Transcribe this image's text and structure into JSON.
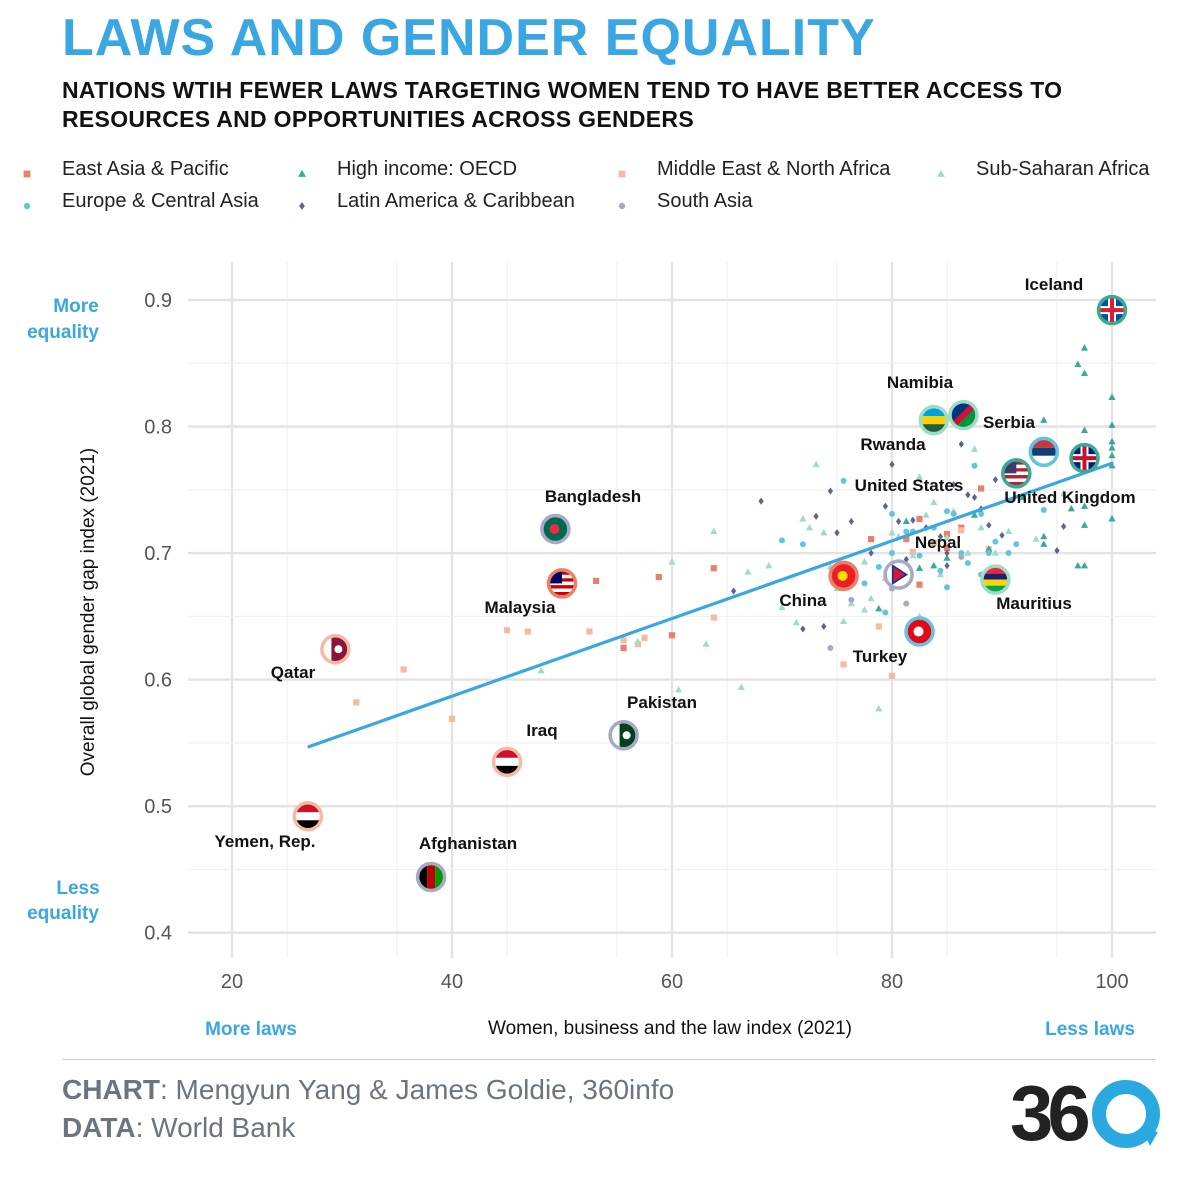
{
  "header": {
    "title": "LAWS AND GENDER EQUALITY",
    "subtitle": "NATIONS WTIH FEWER LAWS TARGETING WOMEN TEND TO HAVE BETTER ACCESS TO RESOURCES AND OPPORTUNITIES ACROSS GENDERS"
  },
  "legend": [
    {
      "label": "East Asia & Pacific",
      "shape": "square",
      "color": "#e8806c"
    },
    {
      "label": "High income: OECD",
      "shape": "triangle",
      "color": "#3aa996"
    },
    {
      "label": "Middle East & North Africa",
      "shape": "square",
      "color": "#f6b9a6"
    },
    {
      "label": "Sub-Saharan Africa",
      "shape": "triangle",
      "color": "#9fdcc6"
    },
    {
      "label": "Europe & Central Asia",
      "shape": "circle",
      "color": "#66c4da"
    },
    {
      "label": "Latin America & Caribbean",
      "shape": "diamond",
      "color": "#5b6690"
    },
    {
      "label": "South Asia",
      "shape": "circle",
      "color": "#a5aac5"
    }
  ],
  "annotations": {
    "y_high": [
      "More",
      "equality"
    ],
    "y_low": [
      "Less",
      "equality"
    ],
    "x_low": "More laws",
    "x_high": "Less laws"
  },
  "chart_data": {
    "type": "scatter",
    "xlabel": "Women, business and the law index (2021)",
    "ylabel": "Overall global gender gap index (2021)",
    "xlim": [
      16,
      104
    ],
    "ylim": [
      0.38,
      0.93
    ],
    "xticks": [
      "20",
      "40",
      "60",
      "80",
      "100"
    ],
    "yticks": [
      "0.4",
      "0.5",
      "0.6",
      "0.7",
      "0.8",
      "0.9"
    ],
    "trendline": {
      "x": [
        27,
        100
      ],
      "y": [
        0.547,
        0.771
      ],
      "color": "#3aa6e2"
    },
    "labeled_points": [
      {
        "label": "Iceland",
        "x": 100,
        "y": 0.892,
        "region": "High income: OECD"
      },
      {
        "label": "Namibia",
        "x": 86.5,
        "y": 0.809,
        "region": "Sub-Saharan Africa"
      },
      {
        "label": "Rwanda",
        "x": 83.8,
        "y": 0.805,
        "region": "Sub-Saharan Africa"
      },
      {
        "label": "Serbia",
        "x": 93.8,
        "y": 0.78,
        "region": "Europe & Central Asia"
      },
      {
        "label": "United Kingdom",
        "x": 97.5,
        "y": 0.775,
        "region": "High income: OECD"
      },
      {
        "label": "United States",
        "x": 91.3,
        "y": 0.763,
        "region": "High income: OECD"
      },
      {
        "label": "Bangladesh",
        "x": 49.4,
        "y": 0.719,
        "region": "South Asia"
      },
      {
        "label": "Nepal",
        "x": 80.6,
        "y": 0.683,
        "region": "South Asia"
      },
      {
        "label": "China",
        "x": 75.6,
        "y": 0.682,
        "region": "East Asia & Pacific"
      },
      {
        "label": "Mauritius",
        "x": 89.4,
        "y": 0.679,
        "region": "Sub-Saharan Africa"
      },
      {
        "label": "Malaysia",
        "x": 50.0,
        "y": 0.676,
        "region": "East Asia & Pacific"
      },
      {
        "label": "Turkey",
        "x": 82.5,
        "y": 0.638,
        "region": "Europe & Central Asia"
      },
      {
        "label": "Qatar",
        "x": 29.4,
        "y": 0.624,
        "region": "Middle East & North Africa"
      },
      {
        "label": "Pakistan",
        "x": 55.6,
        "y": 0.556,
        "region": "South Asia"
      },
      {
        "label": "Iraq",
        "x": 45.0,
        "y": 0.535,
        "region": "Middle East & North Africa"
      },
      {
        "label": "Yemen, Rep.",
        "x": 26.9,
        "y": 0.492,
        "region": "Middle East & North Africa"
      },
      {
        "label": "Afghanistan",
        "x": 38.1,
        "y": 0.444,
        "region": "South Asia"
      }
    ],
    "series": [
      {
        "name": "East Asia & Pacific",
        "points": [
          [
            53.1,
            0.678
          ],
          [
            58.8,
            0.681
          ],
          [
            63.8,
            0.688
          ],
          [
            60.0,
            0.635
          ],
          [
            55.6,
            0.625
          ],
          [
            78.1,
            0.711
          ],
          [
            81.3,
            0.711
          ],
          [
            82.5,
            0.727
          ],
          [
            82.5,
            0.675
          ],
          [
            85.0,
            0.715
          ],
          [
            86.3,
            0.72
          ],
          [
            88.1,
            0.751
          ],
          [
            85.0,
            0.704
          ]
        ]
      },
      {
        "name": "Middle East & North Africa",
        "points": [
          [
            31.3,
            0.582
          ],
          [
            35.6,
            0.608
          ],
          [
            40.0,
            0.569
          ],
          [
            45.0,
            0.639
          ],
          [
            46.9,
            0.638
          ],
          [
            52.5,
            0.638
          ],
          [
            55.6,
            0.631
          ],
          [
            56.9,
            0.628
          ],
          [
            57.5,
            0.633
          ],
          [
            63.8,
            0.649
          ],
          [
            75.6,
            0.612
          ],
          [
            80.0,
            0.603
          ],
          [
            81.9,
            0.701
          ],
          [
            86.3,
            0.718
          ],
          [
            88.8,
            0.703
          ],
          [
            78.8,
            0.642
          ],
          [
            83.8,
            0.708
          ]
        ]
      },
      {
        "name": "High income: OECD",
        "points": [
          [
            97.5,
            0.862
          ],
          [
            97.5,
            0.842
          ],
          [
            96.9,
            0.849
          ],
          [
            100,
            0.823
          ],
          [
            100,
            0.801
          ],
          [
            100,
            0.788
          ],
          [
            100,
            0.783
          ],
          [
            100,
            0.777
          ],
          [
            100,
            0.769
          ],
          [
            100,
            0.727
          ],
          [
            97.5,
            0.797
          ],
          [
            97.5,
            0.775
          ],
          [
            97.5,
            0.737
          ],
          [
            97.5,
            0.722
          ],
          [
            97.5,
            0.69
          ],
          [
            96.9,
            0.69
          ],
          [
            93.8,
            0.805
          ],
          [
            93.8,
            0.713
          ],
          [
            93.8,
            0.707
          ],
          [
            96.3,
            0.735
          ],
          [
            91.9,
            0.744
          ],
          [
            90.6,
            0.76
          ],
          [
            88.8,
            0.703
          ],
          [
            87.5,
            0.73
          ],
          [
            82.5,
            0.688
          ],
          [
            85.0,
            0.696
          ],
          [
            78.8,
            0.656
          ],
          [
            81.3,
            0.725
          ],
          [
            83.8,
            0.69
          ]
        ]
      },
      {
        "name": "Sub-Saharan Africa",
        "points": [
          [
            48.1,
            0.607
          ],
          [
            56.9,
            0.63
          ],
          [
            60.0,
            0.693
          ],
          [
            60.6,
            0.592
          ],
          [
            63.1,
            0.628
          ],
          [
            63.8,
            0.717
          ],
          [
            66.3,
            0.594
          ],
          [
            66.9,
            0.685
          ],
          [
            71.9,
            0.727
          ],
          [
            72.5,
            0.72
          ],
          [
            73.1,
            0.77
          ],
          [
            73.8,
            0.716
          ],
          [
            75.0,
            0.672
          ],
          [
            76.3,
            0.66
          ],
          [
            77.5,
            0.693
          ],
          [
            78.1,
            0.664
          ],
          [
            78.8,
            0.577
          ],
          [
            79.4,
            0.68
          ],
          [
            80.0,
            0.716
          ],
          [
            80.6,
            0.713
          ],
          [
            81.9,
            0.698
          ],
          [
            82.5,
            0.76
          ],
          [
            82.5,
            0.65
          ],
          [
            83.1,
            0.73
          ],
          [
            83.8,
            0.74
          ],
          [
            85.0,
            0.712
          ],
          [
            85.6,
            0.733
          ],
          [
            85.6,
            0.805
          ],
          [
            86.9,
            0.7
          ],
          [
            87.5,
            0.782
          ],
          [
            88.1,
            0.72
          ],
          [
            89.4,
            0.7
          ],
          [
            90.6,
            0.717
          ],
          [
            93.1,
            0.711
          ],
          [
            95.6,
            0.747
          ],
          [
            71.3,
            0.645
          ],
          [
            77.5,
            0.655
          ],
          [
            75.6,
            0.646
          ],
          [
            68.8,
            0.69
          ],
          [
            70.0,
            0.657
          ],
          [
            74.4,
            0.689
          ],
          [
            84.4,
            0.683
          ]
        ]
      },
      {
        "name": "Europe & Central Asia",
        "points": [
          [
            70.0,
            0.71
          ],
          [
            71.9,
            0.707
          ],
          [
            75.6,
            0.757
          ],
          [
            77.5,
            0.676
          ],
          [
            78.8,
            0.689
          ],
          [
            79.4,
            0.653
          ],
          [
            80.0,
            0.7
          ],
          [
            81.3,
            0.717
          ],
          [
            82.5,
            0.698
          ],
          [
            83.8,
            0.72
          ],
          [
            85.0,
            0.733
          ],
          [
            85.6,
            0.731
          ],
          [
            86.3,
            0.7
          ],
          [
            86.9,
            0.692
          ],
          [
            87.5,
            0.769
          ],
          [
            88.1,
            0.731
          ],
          [
            88.8,
            0.7
          ],
          [
            89.4,
            0.709
          ],
          [
            90.6,
            0.7
          ],
          [
            91.3,
            0.707
          ],
          [
            85.0,
            0.673
          ],
          [
            81.9,
            0.717
          ],
          [
            84.4,
            0.686
          ],
          [
            93.8,
            0.734
          ],
          [
            80.0,
            0.731
          ],
          [
            88.1,
            0.683
          ]
        ]
      },
      {
        "name": "Latin America & Caribbean",
        "points": [
          [
            65.6,
            0.67
          ],
          [
            68.1,
            0.741
          ],
          [
            71.9,
            0.64
          ],
          [
            73.1,
            0.729
          ],
          [
            73.8,
            0.642
          ],
          [
            74.4,
            0.749
          ],
          [
            75.0,
            0.716
          ],
          [
            76.3,
            0.725
          ],
          [
            78.1,
            0.7
          ],
          [
            79.4,
            0.737
          ],
          [
            80.0,
            0.77
          ],
          [
            80.6,
            0.725
          ],
          [
            81.3,
            0.695
          ],
          [
            81.9,
            0.726
          ],
          [
            83.1,
            0.72
          ],
          [
            84.4,
            0.713
          ],
          [
            85.0,
            0.69
          ],
          [
            85.6,
            0.754
          ],
          [
            86.3,
            0.786
          ],
          [
            86.9,
            0.746
          ],
          [
            87.5,
            0.744
          ],
          [
            88.1,
            0.735
          ],
          [
            88.8,
            0.722
          ],
          [
            89.4,
            0.758
          ],
          [
            90.0,
            0.714
          ],
          [
            95.0,
            0.702
          ],
          [
            95.6,
            0.721
          ],
          [
            85.0,
            0.7
          ]
        ]
      },
      {
        "name": "South Asia",
        "points": [
          [
            74.4,
            0.625
          ],
          [
            76.3,
            0.663
          ],
          [
            80.0,
            0.672
          ],
          [
            81.3,
            0.66
          ],
          [
            86.3,
            0.697
          ]
        ]
      }
    ]
  },
  "footer": {
    "chart_key": "CHART",
    "chart_value": ": Mengyun Yang & James Goldie, 360info",
    "data_key": "DATA",
    "data_value": ": World Bank",
    "logo_text": "36",
    "logo_color_dark": "#222222",
    "logo_color_accent": "#2aa9e0"
  }
}
